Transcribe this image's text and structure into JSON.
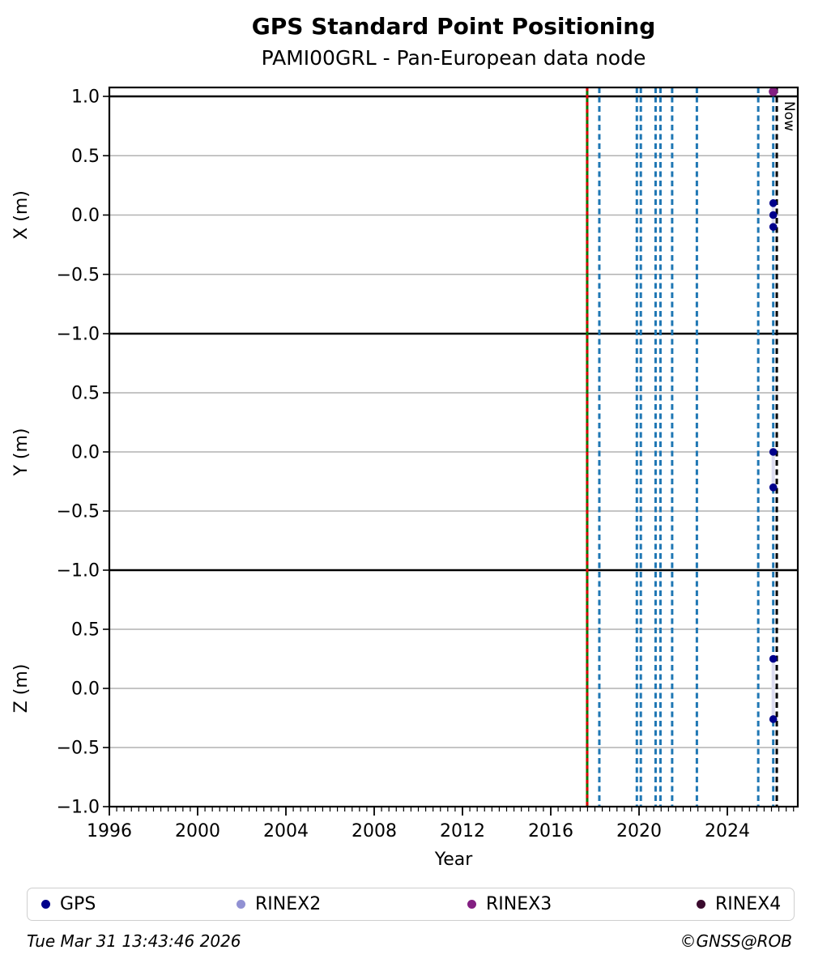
{
  "header": {
    "title": "GPS Standard Point Positioning",
    "subtitle": "PAMI00GRL - Pan-European data node"
  },
  "chart_data": {
    "type": "scatter",
    "title": "GPS Standard Point Positioning",
    "subtitle": "PAMI00GRL - Pan-European data node",
    "xlabel": "Year",
    "xlim": [
      1996,
      2027.1
    ],
    "x_major_ticks": [
      1996,
      2000,
      2004,
      2008,
      2012,
      2016,
      2020,
      2024
    ],
    "x_minor_step_years": 0.3333,
    "grid": "horizontal gray lines every 0.5 m; solid black lines at the ±1.0 m subplot boundaries",
    "legend_position": "bottom",
    "reference_line": {
      "year": 2017.65,
      "style": "green solid with red dashes"
    },
    "data_gap_lines": {
      "style": "blue dashed vertical lines",
      "years": [
        2018.2,
        2019.9,
        2020.08,
        2020.75,
        2020.97,
        2021.5,
        2022.62,
        2025.4,
        2026.08
      ]
    },
    "now_marker": {
      "year": 2026.24,
      "label": "Now",
      "style": "black dashed vertical line"
    },
    "subplots": [
      {
        "ylabel": "X (m)",
        "ylim": [
          -1.0,
          1.08
        ],
        "y_ticks": [
          1.0,
          0.5,
          0.0,
          -0.5,
          -1.0
        ],
        "y_tick_labels": [
          "1.0",
          "0.5",
          "0.0",
          "−0.5",
          "−1.0"
        ],
        "series": [
          {
            "name": "GPS",
            "color": "#00008b",
            "points": [
              [
                2026.08,
                0.1
              ],
              [
                2026.08,
                0.0
              ],
              [
                2026.08,
                -0.1
              ]
            ]
          },
          {
            "name": "RINEX3",
            "color": "#831f82",
            "points": [
              [
                2026.08,
                1.04
              ]
            ]
          }
        ]
      },
      {
        "ylabel": "Y (m)",
        "ylim": [
          -1.0,
          1.0
        ],
        "y_ticks": [
          0.5,
          0.0,
          -0.5,
          -1.0
        ],
        "y_tick_labels": [
          "0.5",
          "0.0",
          "−0.5",
          "−1.0"
        ],
        "series": [
          {
            "name": "GPS",
            "color": "#00008b",
            "points": [
              [
                2026.08,
                0.0
              ],
              [
                2026.08,
                -0.3
              ]
            ]
          }
        ]
      },
      {
        "ylabel": "Z (m)",
        "ylim": [
          -1.0,
          1.0
        ],
        "y_ticks": [
          0.5,
          0.0,
          -0.5,
          -1.0
        ],
        "y_tick_labels": [
          "0.5",
          "0.0",
          "−0.5",
          "−1.0"
        ],
        "series": [
          {
            "name": "GPS",
            "color": "#00008b",
            "points": [
              [
                2026.08,
                0.25
              ],
              [
                2026.08,
                -0.26
              ]
            ]
          }
        ]
      }
    ],
    "colors": {
      "gps": "#00008b",
      "rinex2": "#9191d3",
      "rinex3": "#831f82",
      "rinex4": "#3a0b2e",
      "event_blue": "#1f77b4",
      "event_green": "#007a00",
      "event_red": "#e00000",
      "now": "#000000",
      "grid": "#b2b2b2",
      "connector": "#dcdcf0",
      "axis": "#000000"
    }
  },
  "legend": {
    "entries": [
      {
        "label": "GPS",
        "color": "#00008b"
      },
      {
        "label": "RINEX2",
        "color": "#9191d3"
      },
      {
        "label": "RINEX3",
        "color": "#831f82"
      },
      {
        "label": "RINEX4",
        "color": "#3a0b2e"
      }
    ]
  },
  "footer": {
    "timestamp": "Tue Mar 31 13:43:46 2026",
    "credit": "©GNSS@ROB"
  }
}
